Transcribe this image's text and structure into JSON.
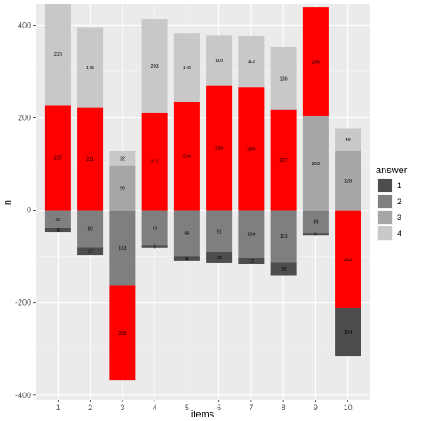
{
  "chart_data": {
    "type": "bar",
    "stacked": "diverging",
    "xlabel": "items",
    "ylabel": "n",
    "categories": [
      "1",
      "2",
      "3",
      "4",
      "5",
      "6",
      "7",
      "8",
      "9",
      "10"
    ],
    "ylim": [
      -410,
      445
    ],
    "yticks": [
      -400,
      -200,
      0,
      200,
      400
    ],
    "grid": true,
    "legend": {
      "title": "answer",
      "position": "right",
      "entries": [
        "1",
        "2",
        "3",
        "4"
      ],
      "colors": [
        "#4d4d4d",
        "#7f7f7f",
        "#a6a6a6",
        "#c8c8c8"
      ]
    },
    "highlight_color": "#ff0000",
    "bars": [
      {
        "category": "1",
        "segments": [
          {
            "answer": "1",
            "value": -8,
            "label": "8"
          },
          {
            "answer": "2",
            "value": -39,
            "label": "39"
          },
          {
            "answer": "3",
            "value": 227,
            "label": "227",
            "highlight": true
          },
          {
            "answer": "4",
            "value": 220,
            "label": "220"
          }
        ]
      },
      {
        "category": "2",
        "segments": [
          {
            "answer": "1",
            "value": -17,
            "label": "17"
          },
          {
            "answer": "2",
            "value": -80,
            "label": "80"
          },
          {
            "answer": "3",
            "value": 221,
            "label": "221",
            "highlight": true
          },
          {
            "answer": "4",
            "value": 175,
            "label": "175"
          }
        ]
      },
      {
        "category": "3",
        "segments": [
          {
            "answer": "1",
            "value": -205,
            "label": "205",
            "highlight": true
          },
          {
            "answer": "2",
            "value": -163,
            "label": "163"
          },
          {
            "answer": "3",
            "value": 96,
            "label": "96"
          },
          {
            "answer": "4",
            "value": 32,
            "label": "32"
          }
        ]
      },
      {
        "category": "4",
        "segments": [
          {
            "answer": "1",
            "value": -5,
            "label": "5"
          },
          {
            "answer": "2",
            "value": -76,
            "label": "76"
          },
          {
            "answer": "3",
            "value": 211,
            "label": "211",
            "highlight": true
          },
          {
            "answer": "4",
            "value": 203,
            "label": "203"
          }
        ]
      },
      {
        "category": "5",
        "segments": [
          {
            "answer": "1",
            "value": -11,
            "label": "11"
          },
          {
            "answer": "2",
            "value": -99,
            "label": "99"
          },
          {
            "answer": "3",
            "value": 234,
            "label": "234",
            "highlight": true
          },
          {
            "answer": "4",
            "value": 149,
            "label": "149"
          }
        ]
      },
      {
        "category": "6",
        "segments": [
          {
            "answer": "1",
            "value": -23,
            "label": "23"
          },
          {
            "answer": "2",
            "value": -91,
            "label": "91"
          },
          {
            "answer": "3",
            "value": 269,
            "label": "269",
            "highlight": true
          },
          {
            "answer": "4",
            "value": 110,
            "label": "110"
          }
        ]
      },
      {
        "category": "7",
        "segments": [
          {
            "answer": "1",
            "value": -12,
            "label": "12"
          },
          {
            "answer": "2",
            "value": -104,
            "label": "104"
          },
          {
            "answer": "3",
            "value": 266,
            "label": "266",
            "highlight": true
          },
          {
            "answer": "4",
            "value": 112,
            "label": "112"
          }
        ]
      },
      {
        "category": "8",
        "segments": [
          {
            "answer": "1",
            "value": -29,
            "label": "29"
          },
          {
            "answer": "2",
            "value": -113,
            "label": "113"
          },
          {
            "answer": "3",
            "value": 217,
            "label": "217",
            "highlight": true
          },
          {
            "answer": "4",
            "value": 136,
            "label": "136"
          }
        ]
      },
      {
        "category": "9",
        "segments": [
          {
            "answer": "1",
            "value": -6,
            "label": "6"
          },
          {
            "answer": "2",
            "value": -49,
            "label": "49"
          },
          {
            "answer": "3",
            "value": 203,
            "label": "203"
          },
          {
            "answer": "4",
            "value": 236,
            "label": "236",
            "highlight": true
          }
        ]
      },
      {
        "category": "10",
        "segments": [
          {
            "answer": "1",
            "value": -104,
            "label": "104"
          },
          {
            "answer": "2",
            "value": -212,
            "label": "212",
            "highlight": true
          },
          {
            "answer": "3",
            "value": 128,
            "label": "128"
          },
          {
            "answer": "4",
            "value": 49,
            "label": "49"
          }
        ]
      }
    ]
  }
}
